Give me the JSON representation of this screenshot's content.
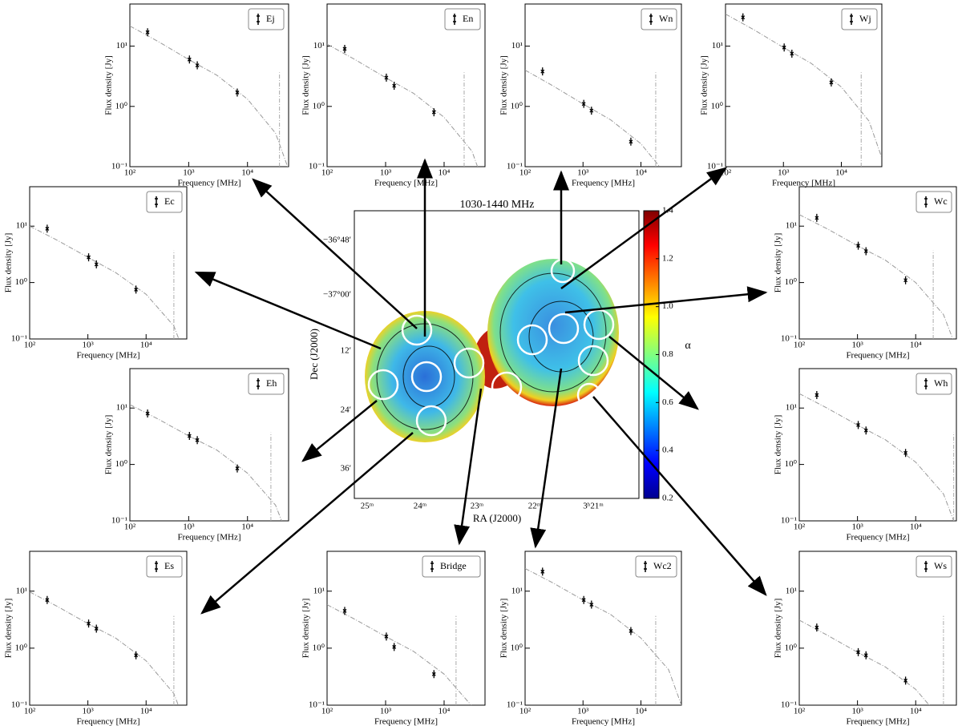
{
  "chart_data": [
    {
      "type": "scatter",
      "legend": "Ej",
      "xlabel": "Frequency [MHz]",
      "ylabel": "Flux density [Jy]",
      "log": true,
      "xlim": [
        100,
        50000
      ],
      "ylim": [
        0.1,
        50
      ],
      "xticks": [
        {
          "value": 100,
          "label": "10²"
        },
        {
          "value": 1000,
          "label": "10³"
        },
        {
          "value": 10000,
          "label": "10⁴"
        }
      ],
      "yticks": [
        {
          "value": 0.1,
          "label": "10⁻¹"
        },
        {
          "value": 1,
          "label": "10⁰"
        },
        {
          "value": 10,
          "label": "10¹"
        }
      ],
      "x": [
        200,
        1030,
        1400,
        6700
      ],
      "values": [
        17,
        6,
        4.8,
        1.7
      ],
      "model_x": [
        100,
        300,
        1000,
        3000,
        10000,
        30000,
        50000
      ],
      "model": [
        21.6,
        12,
        6,
        3.3,
        1.32,
        0.36,
        0.09
      ],
      "cutoff": 35000
    },
    {
      "type": "scatter",
      "legend": "En",
      "xlabel": "Frequency [MHz]",
      "ylabel": "Flux density [Jy]",
      "log": true,
      "xlim": [
        100,
        50000
      ],
      "ylim": [
        0.1,
        50
      ],
      "xticks": [
        {
          "value": 100,
          "label": "10²"
        },
        {
          "value": 1000,
          "label": "10³"
        },
        {
          "value": 10000,
          "label": "10⁴"
        }
      ],
      "yticks": [
        {
          "value": 0.1,
          "label": "10⁻¹"
        },
        {
          "value": 1,
          "label": "10⁰"
        },
        {
          "value": 10,
          "label": "10¹"
        }
      ],
      "x": [
        200,
        1030,
        1400,
        6700
      ],
      "values": [
        9,
        3,
        2.2,
        0.8
      ],
      "model_x": [
        100,
        300,
        1000,
        3000,
        10000,
        30000,
        50000
      ],
      "model": [
        10.8,
        6,
        3,
        1.65,
        0.66,
        0.18,
        0.045
      ],
      "cutoff": 22000
    },
    {
      "type": "scatter",
      "legend": "Wn",
      "xlabel": "Frequency [MHz]",
      "ylabel": "Flux density [Jy]",
      "log": true,
      "xlim": [
        100,
        50000
      ],
      "ylim": [
        0.1,
        50
      ],
      "xticks": [
        {
          "value": 100,
          "label": "10²"
        },
        {
          "value": 1000,
          "label": "10³"
        },
        {
          "value": 10000,
          "label": "10⁴"
        }
      ],
      "yticks": [
        {
          "value": 0.1,
          "label": "10⁻¹"
        },
        {
          "value": 1,
          "label": "10⁰"
        },
        {
          "value": 10,
          "label": "10¹"
        }
      ],
      "x": [
        200,
        1030,
        1400,
        6700
      ],
      "values": [
        3.8,
        1.1,
        0.85,
        0.26
      ],
      "model_x": [
        100,
        300,
        1000,
        3000,
        10000,
        30000,
        50000
      ],
      "model": [
        4,
        2.2,
        1.1,
        0.6,
        0.24,
        0.066,
        0.017
      ],
      "cutoff": 18000
    },
    {
      "type": "scatter",
      "legend": "Wj",
      "xlabel": "Frequency [MHz]",
      "ylabel": "Flux density [Jy]",
      "log": true,
      "xlim": [
        100,
        50000
      ],
      "ylim": [
        0.1,
        50
      ],
      "xticks": [
        {
          "value": 100,
          "label": "10²"
        },
        {
          "value": 1000,
          "label": "10³"
        },
        {
          "value": 10000,
          "label": "10⁴"
        }
      ],
      "yticks": [
        {
          "value": 0.1,
          "label": "10⁻¹"
        },
        {
          "value": 1,
          "label": "10⁰"
        },
        {
          "value": 10,
          "label": "10¹"
        }
      ],
      "x": [
        200,
        1030,
        1400,
        6700
      ],
      "values": [
        30,
        9.5,
        7.5,
        2.5
      ],
      "model_x": [
        100,
        300,
        1000,
        3000,
        10000,
        30000,
        50000
      ],
      "model": [
        34,
        19,
        9.5,
        5.2,
        2.1,
        0.57,
        0.14
      ],
      "cutoff": 22000
    },
    {
      "type": "scatter",
      "legend": "Ec",
      "xlabel": "Frequency [MHz]",
      "ylabel": "Flux density [Jy]",
      "log": true,
      "xlim": [
        100,
        50000
      ],
      "ylim": [
        0.1,
        50
      ],
      "xticks": [
        {
          "value": 100,
          "label": "10²"
        },
        {
          "value": 1000,
          "label": "10³"
        },
        {
          "value": 10000,
          "label": "10⁴"
        }
      ],
      "yticks": [
        {
          "value": 0.1,
          "label": "10⁻¹"
        },
        {
          "value": 1,
          "label": "10⁰"
        },
        {
          "value": 10,
          "label": "10¹"
        }
      ],
      "x": [
        200,
        1030,
        1400,
        6700
      ],
      "values": [
        9,
        2.8,
        2.1,
        0.75
      ],
      "model_x": [
        100,
        300,
        1000,
        3000,
        10000,
        30000,
        50000
      ],
      "model": [
        10,
        5.6,
        2.8,
        1.5,
        0.62,
        0.17,
        0.042
      ],
      "cutoff": 30000
    },
    {
      "type": "scatter",
      "legend": "Wc",
      "xlabel": "Frequency [MHz]",
      "ylabel": "Flux density [Jy]",
      "log": true,
      "xlim": [
        100,
        50000
      ],
      "ylim": [
        0.1,
        50
      ],
      "xticks": [
        {
          "value": 100,
          "label": "10²"
        },
        {
          "value": 1000,
          "label": "10³"
        },
        {
          "value": 10000,
          "label": "10⁴"
        }
      ],
      "yticks": [
        {
          "value": 0.1,
          "label": "10⁻¹"
        },
        {
          "value": 1,
          "label": "10⁰"
        },
        {
          "value": 10,
          "label": "10¹"
        }
      ],
      "x": [
        200,
        1030,
        1400,
        6700
      ],
      "values": [
        14,
        4.5,
        3.6,
        1.1
      ],
      "model_x": [
        100,
        300,
        1000,
        3000,
        10000,
        30000,
        50000
      ],
      "model": [
        16,
        9,
        4.5,
        2.5,
        1,
        0.27,
        0.068
      ],
      "cutoff": 20000
    },
    {
      "type": "scatter",
      "legend": "Eh",
      "xlabel": "Frequency [MHz]",
      "ylabel": "Flux density [Jy]",
      "log": true,
      "xlim": [
        100,
        50000
      ],
      "ylim": [
        0.1,
        50
      ],
      "xticks": [
        {
          "value": 100,
          "label": "10²"
        },
        {
          "value": 1000,
          "label": "10³"
        },
        {
          "value": 10000,
          "label": "10⁴"
        }
      ],
      "yticks": [
        {
          "value": 0.1,
          "label": "10⁻¹"
        },
        {
          "value": 1,
          "label": "10⁰"
        },
        {
          "value": 10,
          "label": "10¹"
        }
      ],
      "x": [
        200,
        1030,
        1400,
        6700
      ],
      "values": [
        8,
        3.2,
        2.7,
        0.85
      ],
      "model_x": [
        100,
        300,
        1000,
        3000,
        10000,
        30000,
        50000
      ],
      "model": [
        11.5,
        6.4,
        3.2,
        1.8,
        0.7,
        0.19,
        0.048
      ],
      "cutoff": 25000
    },
    {
      "type": "scatter",
      "legend": "Wh",
      "xlabel": "Frequency [MHz]",
      "ylabel": "Flux density [Jy]",
      "log": true,
      "xlim": [
        100,
        50000
      ],
      "ylim": [
        0.1,
        50
      ],
      "xticks": [
        {
          "value": 100,
          "label": "10²"
        },
        {
          "value": 1000,
          "label": "10³"
        },
        {
          "value": 10000,
          "label": "10⁴"
        }
      ],
      "yticks": [
        {
          "value": 0.1,
          "label": "10⁻¹"
        },
        {
          "value": 1,
          "label": "10⁰"
        },
        {
          "value": 10,
          "label": "10¹"
        }
      ],
      "x": [
        200,
        1030,
        1400,
        6700
      ],
      "values": [
        17,
        5,
        4,
        1.6
      ],
      "model_x": [
        100,
        300,
        1000,
        3000,
        10000,
        30000,
        50000
      ],
      "model": [
        18,
        10,
        5,
        2.75,
        1.1,
        0.3,
        0.075
      ],
      "cutoff": 45000
    },
    {
      "type": "scatter",
      "legend": "Es",
      "xlabel": "Frequency [MHz]",
      "ylabel": "Flux density [Jy]",
      "log": true,
      "xlim": [
        100,
        50000
      ],
      "ylim": [
        0.1,
        50
      ],
      "xticks": [
        {
          "value": 100,
          "label": "10²"
        },
        {
          "value": 1000,
          "label": "10³"
        },
        {
          "value": 10000,
          "label": "10⁴"
        }
      ],
      "yticks": [
        {
          "value": 0.1,
          "label": "10⁻¹"
        },
        {
          "value": 1,
          "label": "10⁰"
        },
        {
          "value": 10,
          "label": "10¹"
        }
      ],
      "x": [
        200,
        1030,
        1400,
        6700
      ],
      "values": [
        7,
        2.7,
        2.2,
        0.75
      ],
      "model_x": [
        100,
        300,
        1000,
        3000,
        10000,
        30000,
        50000
      ],
      "model": [
        9.7,
        5.4,
        2.7,
        1.5,
        0.6,
        0.16,
        0.04
      ],
      "cutoff": 30000
    },
    {
      "type": "scatter",
      "legend": "Bridge",
      "xlabel": "Frequency [MHz]",
      "ylabel": "Flux density [Jy]",
      "log": true,
      "xlim": [
        100,
        50000
      ],
      "ylim": [
        0.1,
        50
      ],
      "xticks": [
        {
          "value": 100,
          "label": "10²"
        },
        {
          "value": 1000,
          "label": "10³"
        },
        {
          "value": 10000,
          "label": "10⁴"
        }
      ],
      "yticks": [
        {
          "value": 0.1,
          "label": "10⁻¹"
        },
        {
          "value": 1,
          "label": "10⁰"
        },
        {
          "value": 10,
          "label": "10¹"
        }
      ],
      "x": [
        200,
        1030,
        1400,
        6700
      ],
      "values": [
        4.5,
        1.6,
        1.05,
        0.35
      ],
      "model_x": [
        100,
        300,
        1000,
        3000,
        10000,
        30000,
        50000
      ],
      "model": [
        5.8,
        3.2,
        1.6,
        0.88,
        0.35,
        0.096,
        0.024
      ],
      "cutoff": 16000
    },
    {
      "type": "scatter",
      "legend": "Wc2",
      "xlabel": "Frequency [MHz]",
      "ylabel": "Flux density [Jy]",
      "log": true,
      "xlim": [
        100,
        50000
      ],
      "ylim": [
        0.1,
        50
      ],
      "xticks": [
        {
          "value": 100,
          "label": "10²"
        },
        {
          "value": 1000,
          "label": "10³"
        },
        {
          "value": 10000,
          "label": "10⁴"
        }
      ],
      "yticks": [
        {
          "value": 0.1,
          "label": "10⁻¹"
        },
        {
          "value": 1,
          "label": "10⁰"
        },
        {
          "value": 10,
          "label": "10¹"
        }
      ],
      "x": [
        200,
        1030,
        1400,
        6700
      ],
      "values": [
        22,
        7,
        5.8,
        2
      ],
      "model_x": [
        100,
        300,
        1000,
        3000,
        10000,
        30000,
        50000
      ],
      "model": [
        25,
        14,
        7,
        3.9,
        1.5,
        0.42,
        0.1
      ],
      "cutoff": 18000
    },
    {
      "type": "scatter",
      "legend": "Ws",
      "xlabel": "Frequency [MHz]",
      "ylabel": "Flux density [Jy]",
      "log": true,
      "xlim": [
        100,
        50000
      ],
      "ylim": [
        0.1,
        50
      ],
      "xticks": [
        {
          "value": 100,
          "label": "10²"
        },
        {
          "value": 1000,
          "label": "10³"
        },
        {
          "value": 10000,
          "label": "10⁴"
        }
      ],
      "yticks": [
        {
          "value": 0.1,
          "label": "10⁻¹"
        },
        {
          "value": 1,
          "label": "10⁰"
        },
        {
          "value": 10,
          "label": "10¹"
        }
      ],
      "x": [
        200,
        1030,
        1400,
        6700
      ],
      "values": [
        2.3,
        0.85,
        0.75,
        0.27
      ],
      "model_x": [
        100,
        300,
        1000,
        3000,
        10000,
        30000,
        50000
      ],
      "model": [
        3.1,
        1.7,
        0.85,
        0.47,
        0.19,
        0.051,
        0.013
      ],
      "cutoff": 30000
    },
    {
      "type": "map",
      "title": "1030-1440 MHz",
      "xlabel": "RA (J2000)",
      "ylabel": "Dec (J2000)",
      "xtick_labels": [
        "25ᵐ",
        "24ᵐ",
        "23ᵐ",
        "22ᵐ",
        "3ʰ21ᵐ"
      ],
      "ytick_labels": [
        "−36°48′",
        "−37°00′",
        "12′",
        "24′",
        "36′"
      ],
      "colorbar": {
        "label": "α",
        "lim": [
          0.2,
          1.4
        ],
        "ticks": [
          0.2,
          0.4,
          0.6,
          0.8,
          {
            "value": 1,
            "label": "1.0"
          },
          1.2,
          1.4
        ]
      }
    }
  ]
}
